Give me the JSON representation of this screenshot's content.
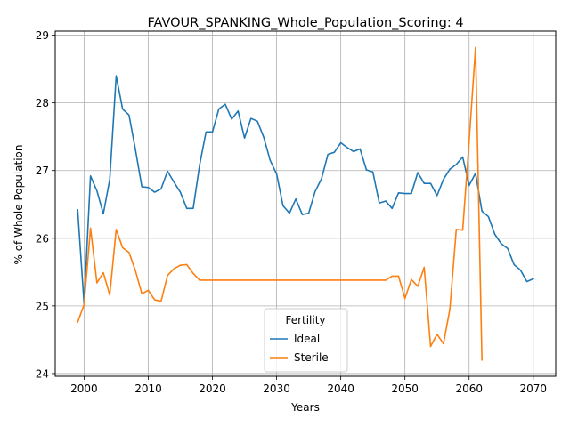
{
  "chart_data": {
    "type": "line",
    "title": "FAVOUR_SPANKING_Whole_Population_Scoring: 4",
    "xlabel": "Years",
    "ylabel": "% of Whole Population",
    "xlim": [
      1995.5,
      2073.5
    ],
    "ylim": [
      23.96,
      29.06
    ],
    "xticks": [
      2000,
      2010,
      2020,
      2030,
      2040,
      2050,
      2060,
      2070
    ],
    "yticks": [
      24,
      25,
      26,
      27,
      28,
      29
    ],
    "grid": true,
    "legend": {
      "title": "Fertility",
      "placement": "bottom-center"
    },
    "series": [
      {
        "name": "Ideal",
        "color": "#1f77b4",
        "x": [
          1999,
          2000,
          2001,
          2002,
          2003,
          2004,
          2005,
          2006,
          2007,
          2008,
          2009,
          2010,
          2011,
          2012,
          2013,
          2014,
          2015,
          2016,
          2017,
          2018,
          2019,
          2020,
          2021,
          2022,
          2023,
          2024,
          2025,
          2026,
          2027,
          2028,
          2029,
          2030,
          2031,
          2032,
          2033,
          2034,
          2035,
          2036,
          2037,
          2038,
          2039,
          2040,
          2041,
          2042,
          2043,
          2044,
          2045,
          2046,
          2047,
          2048,
          2049,
          2050,
          2051,
          2052,
          2053,
          2054,
          2055,
          2056,
          2057,
          2058,
          2059,
          2060,
          2061,
          2062,
          2063,
          2064,
          2065,
          2066,
          2067,
          2068,
          2069,
          2070
        ],
        "values": [
          26.42,
          25.02,
          26.92,
          26.7,
          26.36,
          26.87,
          28.4,
          27.91,
          27.82,
          27.31,
          26.76,
          26.75,
          26.68,
          26.73,
          26.99,
          26.83,
          26.68,
          26.44,
          26.44,
          27.08,
          27.57,
          27.57,
          27.91,
          27.98,
          27.76,
          27.88,
          27.48,
          27.77,
          27.73,
          27.49,
          27.15,
          26.95,
          26.48,
          26.37,
          26.58,
          26.35,
          26.37,
          26.69,
          26.88,
          27.24,
          27.27,
          27.41,
          27.34,
          27.28,
          27.32,
          27.01,
          26.98,
          26.52,
          26.55,
          26.44,
          26.67,
          26.66,
          26.66,
          26.97,
          26.81,
          26.81,
          26.63,
          26.87,
          27.02,
          27.09,
          27.2,
          26.78,
          26.96,
          26.4,
          26.32,
          26.06,
          25.92,
          25.85,
          25.61,
          25.53,
          25.36,
          25.4
        ]
      },
      {
        "name": "Sterile",
        "color": "#ff7f0e",
        "x": [
          1999,
          2000,
          2001,
          2002,
          2003,
          2004,
          2005,
          2006,
          2007,
          2008,
          2009,
          2010,
          2011,
          2012,
          2013,
          2014,
          2015,
          2016,
          2017,
          2018,
          2019,
          2020,
          2021,
          2022,
          2023,
          2024,
          2025,
          2026,
          2027,
          2028,
          2029,
          2030,
          2031,
          2032,
          2033,
          2034,
          2035,
          2036,
          2037,
          2038,
          2039,
          2040,
          2041,
          2042,
          2043,
          2044,
          2045,
          2046,
          2047,
          2048,
          2049,
          2050,
          2051,
          2052,
          2053,
          2054,
          2055,
          2056,
          2057,
          2058,
          2059,
          2060,
          2061,
          2062
        ],
        "values": [
          24.76,
          25.02,
          26.15,
          25.34,
          25.49,
          25.16,
          26.13,
          25.86,
          25.79,
          25.52,
          25.18,
          25.23,
          25.09,
          25.07,
          25.45,
          25.55,
          25.6,
          25.61,
          25.48,
          25.38,
          25.38,
          25.38,
          25.38,
          25.38,
          25.38,
          25.38,
          25.38,
          25.38,
          25.38,
          25.38,
          25.38,
          25.38,
          25.38,
          25.38,
          25.38,
          25.38,
          25.38,
          25.38,
          25.38,
          25.38,
          25.38,
          25.38,
          25.38,
          25.38,
          25.38,
          25.38,
          25.38,
          25.38,
          25.38,
          25.44,
          25.44,
          25.11,
          25.39,
          25.29,
          25.57,
          24.4,
          24.58,
          24.44,
          24.95,
          26.13,
          26.12,
          27.43,
          28.82,
          24.2
        ]
      }
    ]
  }
}
